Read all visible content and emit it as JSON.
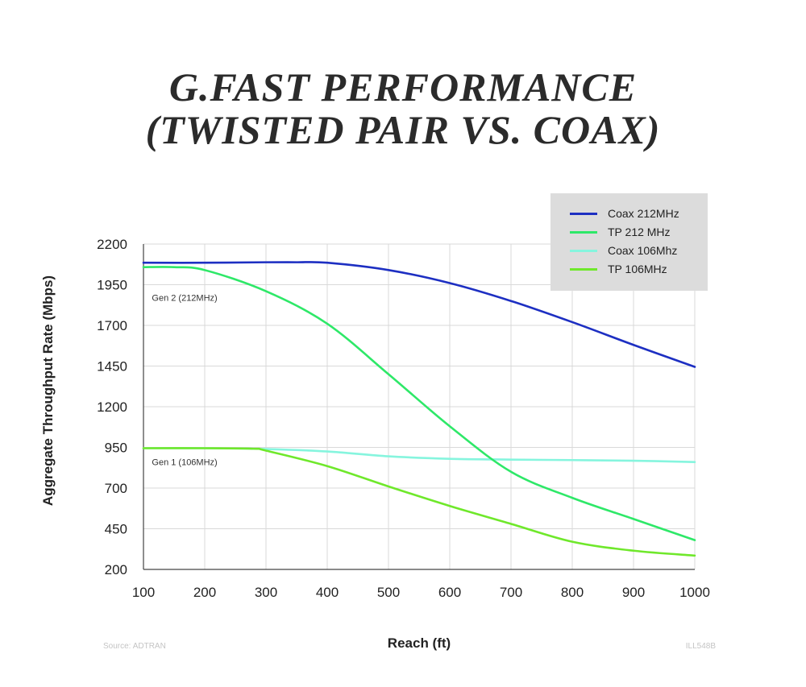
{
  "title": {
    "line1": "G.FAST PERFORMANCE",
    "line2": "(TWISTED PAIR VS. COAX)"
  },
  "footer": {
    "source": "Source: ADTRAN",
    "code": "ILL548B"
  },
  "chart_data": {
    "type": "line",
    "title": "G.FAST PERFORMANCE (TWISTED PAIR VS. COAX)",
    "xlabel": "Reach (ft)",
    "ylabel": "Aggregate Throughput Rate (Mbps)",
    "xlim": [
      100,
      1000
    ],
    "ylim": [
      200,
      2200
    ],
    "xticks": [
      "100",
      "200",
      "300",
      "400",
      "500",
      "600",
      "700",
      "800",
      "900",
      "1000"
    ],
    "yticks": [
      "200",
      "450",
      "700",
      "950",
      "1200",
      "1450",
      "1700",
      "1950",
      "2200"
    ],
    "grid": true,
    "legend_position": "top-right",
    "annotations": [
      {
        "text": "Gen 2 (212MHz)",
        "x": 115,
        "y": 1870
      },
      {
        "text": "Gen 1 (106MHz)",
        "x": 115,
        "y": 860
      }
    ],
    "series": [
      {
        "name": "Coax 212MHz",
        "color": "#1d2fc2",
        "x": [
          100,
          200,
          300,
          350,
          400,
          500,
          600,
          700,
          800,
          900,
          1000
        ],
        "y": [
          2085,
          2085,
          2088,
          2088,
          2085,
          2040,
          1960,
          1850,
          1720,
          1580,
          1445
        ]
      },
      {
        "name": "TP 212 MHz",
        "color": "#2ee868",
        "x": [
          100,
          150,
          200,
          300,
          400,
          500,
          600,
          700,
          800,
          900,
          1000
        ],
        "y": [
          2058,
          2058,
          2040,
          1910,
          1710,
          1400,
          1080,
          800,
          640,
          510,
          380
        ]
      },
      {
        "name": "Coax 106Mhz",
        "color": "#86f5de",
        "x": [
          100,
          200,
          300,
          400,
          500,
          600,
          700,
          800,
          900,
          1000
        ],
        "y": [
          945,
          945,
          940,
          925,
          895,
          880,
          875,
          872,
          868,
          860
        ]
      },
      {
        "name": "TP 106MHz",
        "color": "#6fe82b",
        "x": [
          100,
          200,
          280,
          300,
          400,
          500,
          600,
          700,
          800,
          900,
          1000
        ],
        "y": [
          945,
          945,
          942,
          930,
          835,
          710,
          590,
          480,
          370,
          315,
          285
        ]
      }
    ]
  }
}
